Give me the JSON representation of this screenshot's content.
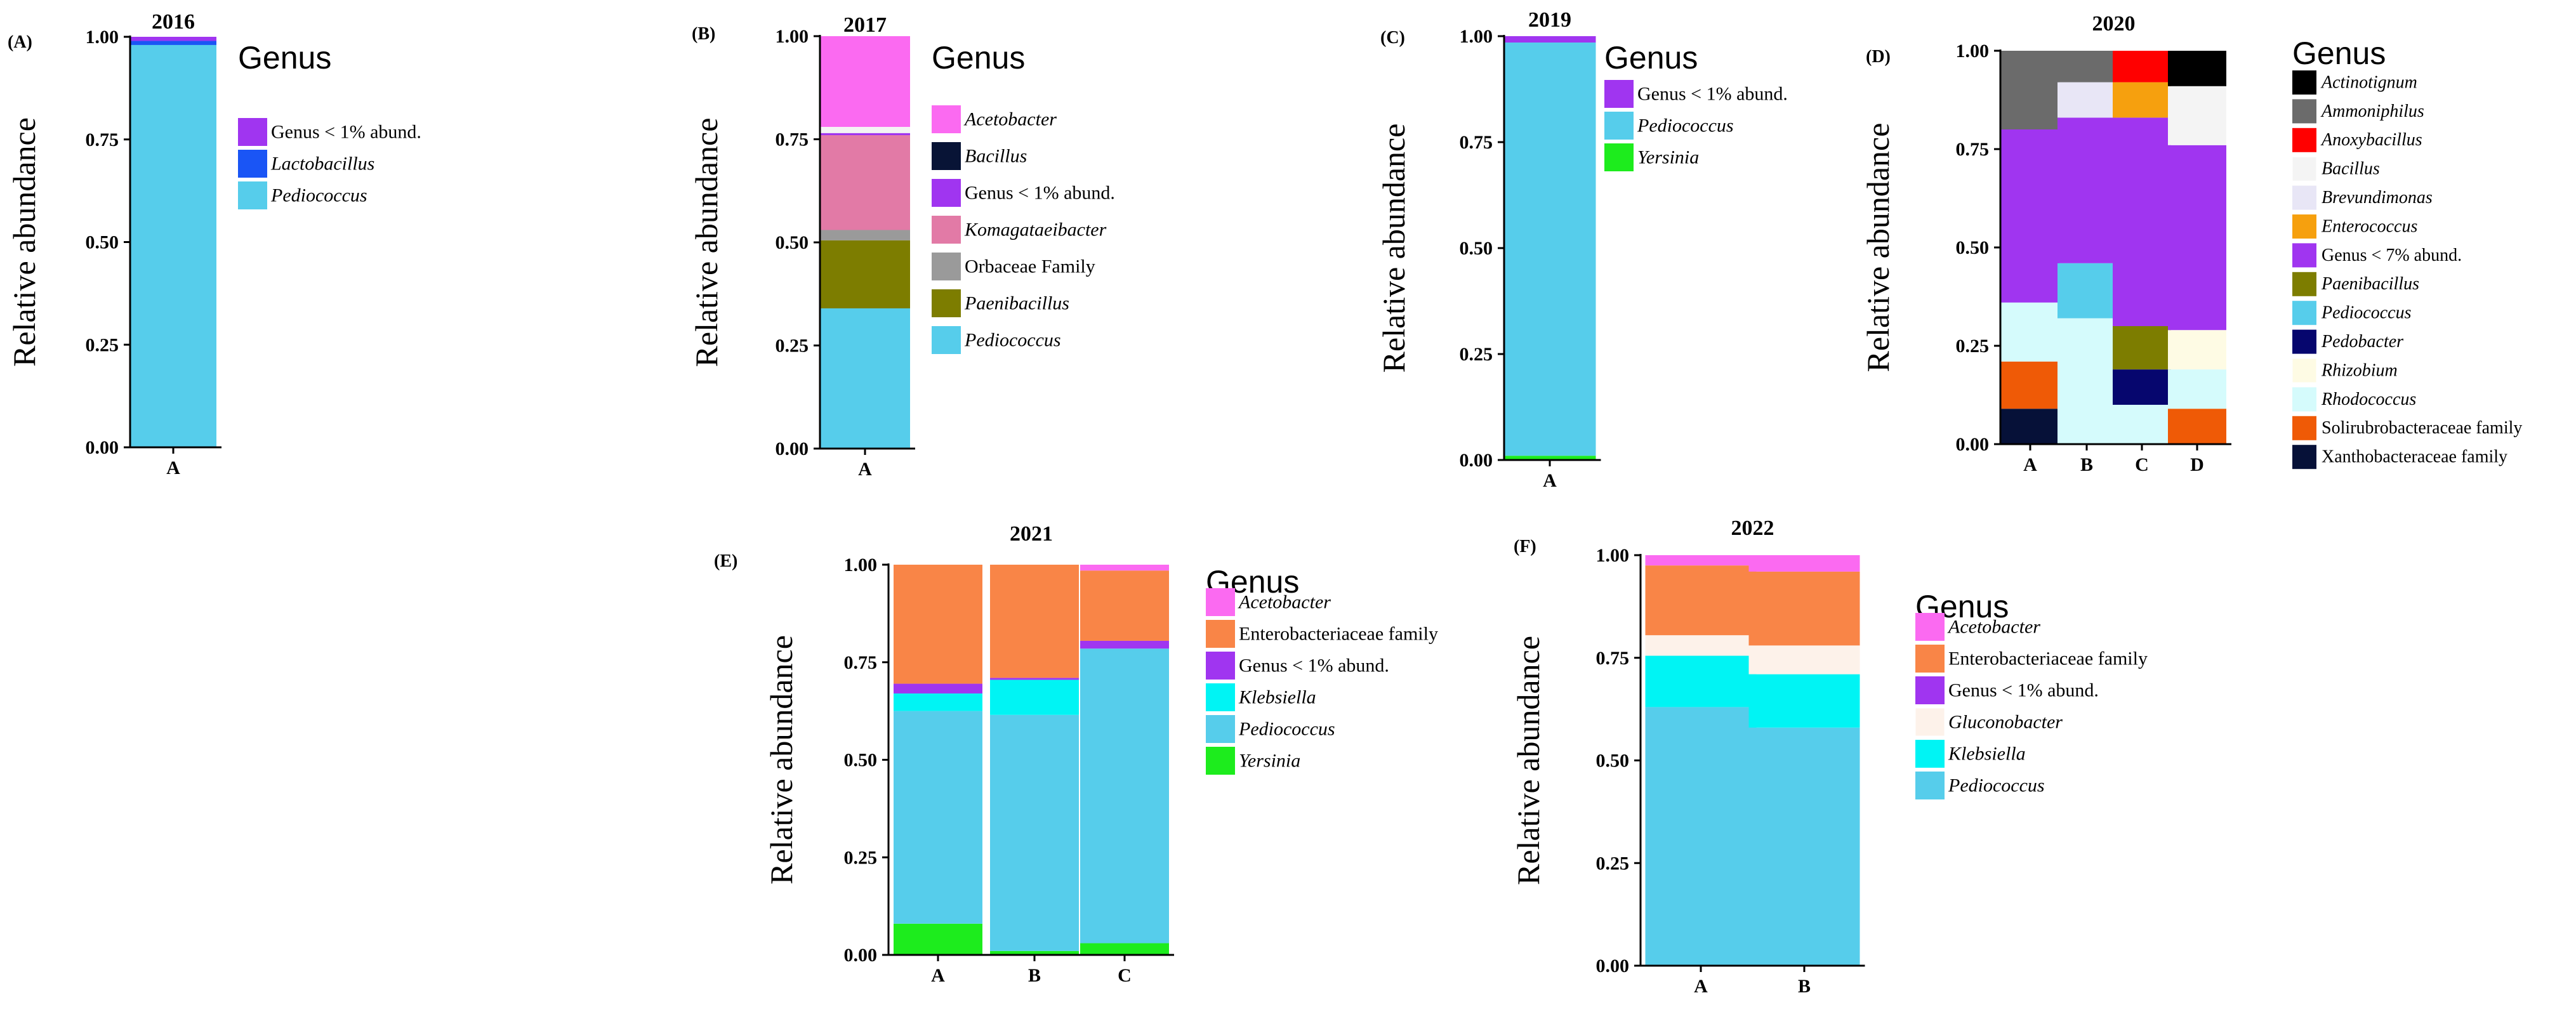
{
  "figure": {
    "colors": {
      "Genus < 1% abund.": "#a035f0",
      "Genus < 7% abund.": "#a035f0",
      "Lactobacillus": "#1a55f5",
      "Pediococcus": "#56cdeb",
      "Acetobacter": "#fb6af1",
      "Bacillus": "#f4f4f4",
      "Komagataeibacter": "#e27aa6",
      "Orbaceae Family": "#9a9a9a",
      "Paenibacillus": "#7d7d00",
      "Yersinia": "#1dec1d",
      "Actinotignum": "#000000",
      "Ammoniphilus": "#6b6b6b",
      "Anoxybacillus": "#ff0000",
      "Brevundimonas": "#e8e6f6",
      "Enterococcus": "#f6a00e",
      "Pedobacter": "#06066e",
      "Rhizobium": "#fefbe4",
      "Rhodococcus": "#d5fbfc",
      "Solirubrobacteraceae family": "#ef5a06",
      "Xanthobacteraceae family": "#061138",
      "Enterobacteriaceae family": "#f98547",
      "Klebsiella": "#00f4f4",
      "Gluconobacter": "#fdf2ea"
    },
    "legend_colors": {
      "B": {
        "Bacillus": "#081436"
      }
    },
    "italic_taxa": [
      "Lactobacillus",
      "Pediococcus",
      "Acetobacter",
      "Bacillus",
      "Komagataeibacter",
      "Paenibacillus",
      "Yersinia",
      "Actinotignum",
      "Ammoniphilus",
      "Anoxybacillus",
      "Brevundimonas",
      "Enterococcus",
      "Pedobacter",
      "Rhizobium",
      "Rhodococcus",
      "Klebsiella",
      "Gluconobacter"
    ]
  },
  "chart_data": [
    {
      "id": "A",
      "type": "bar",
      "stacked": true,
      "panel_label": "(A)",
      "title": "2016",
      "xlabel": "",
      "ylabel": "Relative   abundance",
      "ylim": [
        0,
        1
      ],
      "yticks": [
        "0.00",
        "0.25",
        "0.50",
        "0.75",
        "1.00"
      ],
      "categories": [
        "A"
      ],
      "legend_title": "Genus",
      "legend": [
        "Genus < 1% abund.",
        "Lactobacillus",
        "Pediococcus"
      ],
      "series": [
        {
          "name": "Pediococcus",
          "values": [
            0.98
          ]
        },
        {
          "name": "Lactobacillus",
          "values": [
            0.01
          ]
        },
        {
          "name": "Genus < 1% abund.",
          "values": [
            0.01
          ]
        }
      ]
    },
    {
      "id": "B",
      "type": "bar",
      "stacked": true,
      "panel_label": "(B)",
      "title": "2017",
      "xlabel": "",
      "ylabel": "Relative   abundance",
      "ylim": [
        0,
        1
      ],
      "yticks": [
        "0.00",
        "0.25",
        "0.50",
        "0.75",
        "1.00"
      ],
      "categories": [
        "A"
      ],
      "legend_title": "Genus",
      "legend": [
        "Acetobacter",
        "Bacillus",
        "Genus < 1% abund.",
        "Komagataeibacter",
        "Orbaceae Family",
        "Paenibacillus",
        "Pediococcus"
      ],
      "series": [
        {
          "name": "Pediococcus",
          "values": [
            0.34
          ]
        },
        {
          "name": "Paenibacillus",
          "values": [
            0.165
          ]
        },
        {
          "name": "Orbaceae Family",
          "values": [
            0.025
          ]
        },
        {
          "name": "Komagataeibacter",
          "values": [
            0.23
          ]
        },
        {
          "name": "Genus < 1% abund.",
          "values": [
            0.005
          ]
        },
        {
          "name": "Bacillus",
          "values": [
            0.015
          ]
        },
        {
          "name": "Acetobacter",
          "values": [
            0.22
          ]
        }
      ]
    },
    {
      "id": "C",
      "type": "bar",
      "stacked": true,
      "panel_label": "(C)",
      "title": "2019",
      "xlabel": "",
      "ylabel": "Relative   abundance",
      "ylim": [
        0,
        1
      ],
      "yticks": [
        "0.00",
        "0.25",
        "0.50",
        "0.75",
        "1.00"
      ],
      "categories": [
        "A"
      ],
      "legend_title": "Genus",
      "legend": [
        "Genus < 1% abund.",
        "Pediococcus",
        "Yersinia"
      ],
      "series": [
        {
          "name": "Yersinia",
          "values": [
            0.01
          ]
        },
        {
          "name": "Pediococcus",
          "values": [
            0.975
          ]
        },
        {
          "name": "Genus < 1% abund.",
          "values": [
            0.015
          ]
        }
      ]
    },
    {
      "id": "D",
      "type": "bar",
      "stacked": true,
      "panel_label": "(D)",
      "title": "2020",
      "xlabel": "",
      "ylabel": "Relative   abundance",
      "ylim": [
        0,
        1
      ],
      "yticks": [
        "0.00",
        "0.25",
        "0.50",
        "0.75",
        "1.00"
      ],
      "categories": [
        "A",
        "B",
        "C",
        "D"
      ],
      "legend_title": "Genus",
      "legend": [
        "Actinotignum",
        "Ammoniphilus",
        "Anoxybacillus",
        "Bacillus",
        "Brevundimonas",
        "Enterococcus",
        "Genus < 7% abund.",
        "Paenibacillus",
        "Pediococcus",
        "Pedobacter",
        "Rhizobium",
        "Rhodococcus",
        "Solirubrobacteraceae family",
        "Xanthobacteraceae family"
      ],
      "series": [
        {
          "name": "Xanthobacteraceae family",
          "values": [
            0.09,
            0,
            0,
            0
          ]
        },
        {
          "name": "Solirubrobacteraceae family",
          "values": [
            0.12,
            0,
            0,
            0.09
          ]
        },
        {
          "name": "Rhodococcus",
          "values": [
            0.15,
            0.32,
            0.1,
            0.1
          ]
        },
        {
          "name": "Pedobacter",
          "values": [
            0,
            0,
            0.09,
            0
          ]
        },
        {
          "name": "Paenibacillus",
          "values": [
            0,
            0,
            0.11,
            0
          ]
        },
        {
          "name": "Rhizobium",
          "values": [
            0,
            0,
            0,
            0.1
          ]
        },
        {
          "name": "Pediococcus",
          "values": [
            0,
            0.14,
            0,
            0
          ]
        },
        {
          "name": "Genus < 7% abund.",
          "values": [
            0.44,
            0.37,
            0.53,
            0.47
          ]
        },
        {
          "name": "Enterococcus",
          "values": [
            0,
            0,
            0.09,
            0
          ]
        },
        {
          "name": "Brevundimonas",
          "values": [
            0,
            0.09,
            0,
            0
          ]
        },
        {
          "name": "Bacillus",
          "values": [
            0,
            0,
            0,
            0.15
          ]
        },
        {
          "name": "Anoxybacillus",
          "values": [
            0,
            0,
            0.08,
            0
          ]
        },
        {
          "name": "Ammoniphilus",
          "values": [
            0.2,
            0.08,
            0,
            0
          ]
        },
        {
          "name": "Actinotignum",
          "values": [
            0,
            0,
            0,
            0.09
          ]
        }
      ]
    },
    {
      "id": "E",
      "type": "bar",
      "stacked": true,
      "panel_label": "(E)",
      "title": "2021",
      "xlabel": "",
      "ylabel": "Relative   abundance",
      "ylim": [
        0,
        1
      ],
      "yticks": [
        "0.00",
        "0.25",
        "0.50",
        "0.75",
        "1.00"
      ],
      "categories": [
        "A",
        "B",
        "C"
      ],
      "legend_title": "Genus",
      "legend": [
        "Acetobacter",
        "Enterobacteriaceae family",
        "Genus < 1% abund.",
        "Klebsiella",
        "Pediococcus",
        "Yersinia"
      ],
      "series": [
        {
          "name": "Yersinia",
          "values": [
            0.08,
            0.01,
            0.03
          ]
        },
        {
          "name": "Pediococcus",
          "values": [
            0.545,
            0.605,
            0.755
          ]
        },
        {
          "name": "Klebsiella",
          "values": [
            0.045,
            0.09,
            0
          ]
        },
        {
          "name": "Genus < 1% abund.",
          "values": [
            0.025,
            0.005,
            0.02
          ]
        },
        {
          "name": "Enterobacteriaceae family",
          "values": [
            0.305,
            0.29,
            0.18
          ]
        },
        {
          "name": "Acetobacter",
          "values": [
            0,
            0,
            0.015
          ]
        }
      ]
    },
    {
      "id": "F",
      "type": "bar",
      "stacked": true,
      "panel_label": "(F)",
      "title": "2022",
      "xlabel": "",
      "ylabel": "Relative   abundance",
      "ylim": [
        0,
        1
      ],
      "yticks": [
        "0.00",
        "0.25",
        "0.50",
        "0.75",
        "1.00"
      ],
      "categories": [
        "A",
        "B"
      ],
      "legend_title": "Genus",
      "legend": [
        "Acetobacter",
        "Enterobacteriaceae family",
        "Genus < 1% abund.",
        "Gluconobacter",
        "Klebsiella",
        "Pediococcus"
      ],
      "series": [
        {
          "name": "Pediococcus",
          "values": [
            0.63,
            0.58
          ]
        },
        {
          "name": "Klebsiella",
          "values": [
            0.125,
            0.13
          ]
        },
        {
          "name": "Gluconobacter",
          "values": [
            0.05,
            0.07
          ]
        },
        {
          "name": "Genus < 1% abund.",
          "values": [
            0,
            0
          ]
        },
        {
          "name": "Enterobacteriaceae family",
          "values": [
            0.17,
            0.18
          ]
        },
        {
          "name": "Acetobacter",
          "values": [
            0.025,
            0.04
          ]
        }
      ]
    }
  ]
}
